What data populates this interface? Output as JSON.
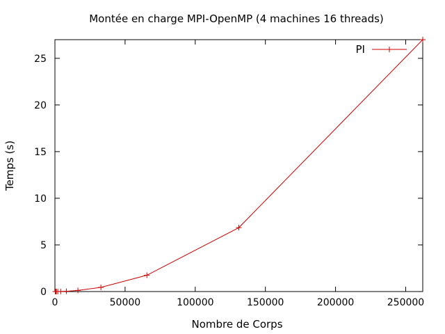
{
  "chart_data": {
    "type": "line",
    "title": "Montée en charge MPI-OpenMP (4 machines 16 threads)",
    "xlabel": "Nombre de Corps",
    "ylabel": "Temps (s)",
    "xlim": [
      0,
      262144
    ],
    "ylim": [
      0,
      27
    ],
    "xticks": [
      0,
      50000,
      100000,
      150000,
      200000,
      250000
    ],
    "xtick_labels": [
      "0",
      "50000",
      "100000",
      "150000",
      "200000",
      "250000"
    ],
    "yticks": [
      0,
      5,
      10,
      15,
      20,
      25
    ],
    "ytick_labels": [
      "0",
      "5",
      "10",
      "15",
      "20",
      "25"
    ],
    "grid": false,
    "legend_position": "top-right",
    "series": [
      {
        "name": "PI",
        "color": "#cc0000",
        "marker": "plus",
        "x": [
          256,
          512,
          1024,
          2048,
          4096,
          8192,
          16384,
          32768,
          65536,
          131072,
          262144
        ],
        "y": [
          0.0,
          0.0,
          0.0,
          0.0,
          0.01,
          0.03,
          0.12,
          0.45,
          1.75,
          6.85,
          27.0
        ]
      }
    ]
  }
}
